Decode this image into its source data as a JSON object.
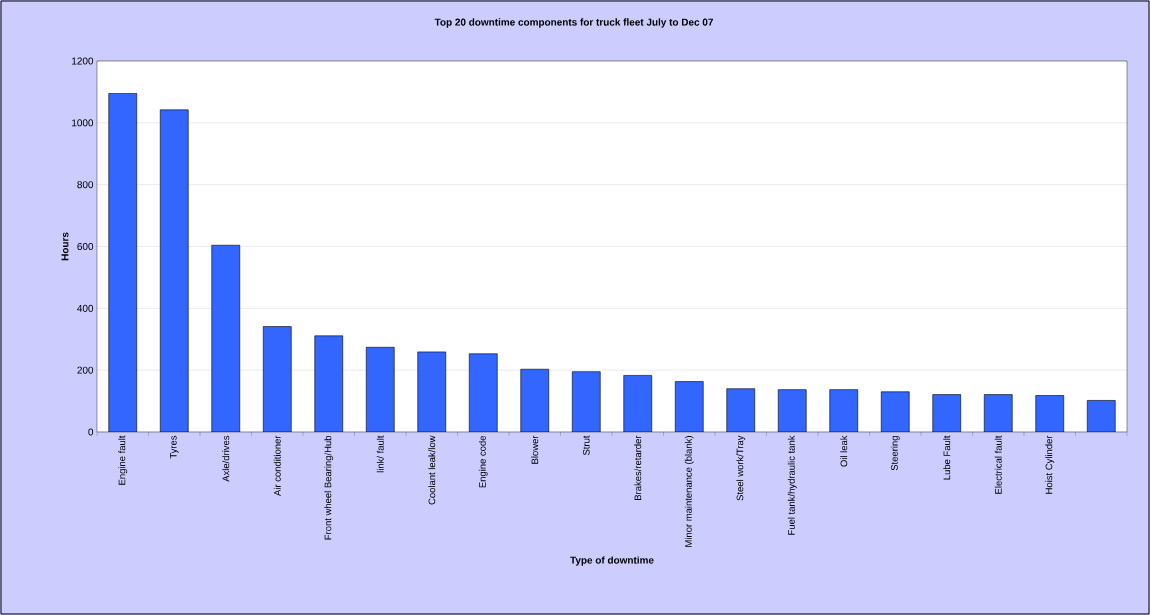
{
  "chart_data": {
    "type": "bar",
    "title": "Top 20 downtime components for truck fleet July to Dec 07",
    "xlabel": "Type of downtime",
    "ylabel": "Hours",
    "categories": [
      "Engine fault",
      "Tyres",
      "Axle/drives",
      "Air conditioner",
      "Front wheel Bearing/Hub",
      "link/ fault",
      "Coolant leak/low",
      "Engine code",
      "Blower",
      "Strut",
      "Brakes/retarder",
      "Minor maintenance (blank)",
      "Steel work/Tray",
      "Fuel tank/hydraulic tank",
      "Oil leak",
      "Steering",
      "Lube Fault",
      "Electrical fault",
      "Hoist Cylinder",
      null
    ],
    "values": [
      1095,
      1042,
      604,
      341,
      311,
      274,
      259,
      253,
      203,
      195,
      183,
      163,
      140,
      137,
      137,
      130,
      121,
      121,
      118,
      102
    ],
    "color": "#3366ff",
    "ylim": [
      0,
      1200
    ],
    "yticks": [
      0,
      200,
      400,
      600,
      800,
      1000,
      1200
    ],
    "grid": "y"
  }
}
